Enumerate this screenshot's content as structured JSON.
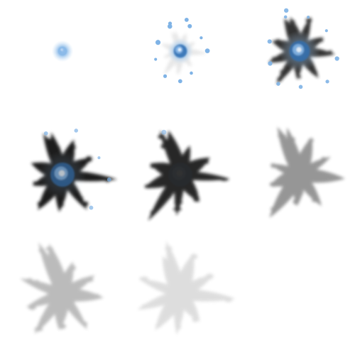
{
  "sprite_sheet": {
    "description_visible_text": "",
    "columns": 3,
    "rows": 3,
    "frames": [
      {
        "index": 0,
        "stage": "spark",
        "dark_alpha": 0.0,
        "blue_alpha": 1.0,
        "glow_alpha": 1.0,
        "scale": 0.22,
        "rays": 0,
        "dots": 0
      },
      {
        "index": 1,
        "stage": "burst",
        "dark_alpha": 0.15,
        "blue_alpha": 1.0,
        "glow_alpha": 0.9,
        "scale": 0.55,
        "rays": 8,
        "dots": 12
      },
      {
        "index": 2,
        "stage": "splat-blue",
        "dark_alpha": 0.9,
        "blue_alpha": 0.9,
        "glow_alpha": 0.5,
        "scale": 0.85,
        "rays": 8,
        "dots": 10
      },
      {
        "index": 3,
        "stage": "splat-dark-blue",
        "dark_alpha": 1.0,
        "blue_alpha": 0.7,
        "glow_alpha": 0.2,
        "scale": 1.0,
        "rays": 8,
        "dots": 5
      },
      {
        "index": 4,
        "stage": "splat-dark",
        "dark_alpha": 0.95,
        "blue_alpha": 0.05,
        "glow_alpha": 0.0,
        "scale": 1.0,
        "rays": 8,
        "dots": 1
      },
      {
        "index": 5,
        "stage": "fade-1",
        "dark_alpha": 0.7,
        "blue_alpha": 0.0,
        "glow_alpha": 0.0,
        "scale": 1.02,
        "rays": 8,
        "dots": 0
      },
      {
        "index": 6,
        "stage": "fade-2",
        "dark_alpha": 0.45,
        "blue_alpha": 0.0,
        "glow_alpha": 0.0,
        "scale": 1.04,
        "rays": 8,
        "dots": 0
      },
      {
        "index": 7,
        "stage": "fade-3",
        "dark_alpha": 0.22,
        "blue_alpha": 0.0,
        "glow_alpha": 0.0,
        "scale": 1.05,
        "rays": 8,
        "dots": 0
      },
      {
        "index": 8,
        "stage": "empty",
        "dark_alpha": 0.0,
        "blue_alpha": 0.0,
        "glow_alpha": 0.0,
        "scale": 0.0,
        "rays": 0,
        "dots": 0
      }
    ],
    "colors": {
      "background": "#ffffff",
      "splat_dark": "#1a1a1a",
      "splat_gray": "#6b6b6b",
      "blue_core": "#2f6fb3",
      "blue_light": "#7fb3e6",
      "glow": "#cfe4f7",
      "highlight": "#eaf5ff"
    }
  }
}
